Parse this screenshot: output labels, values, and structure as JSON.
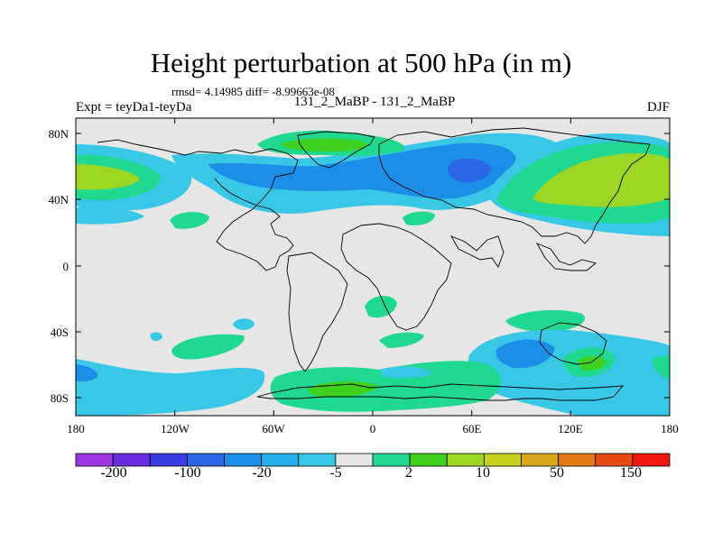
{
  "title": "Height perturbation at 500 hPa (in m)",
  "stats": "rmsd= 4.14985 diff= -8.99663e-08",
  "left_label": "Expt = teyDa1-teyDa",
  "center_label": "131_2_MaBP - 131_2_MaBP",
  "right_label": "DJF",
  "map": {
    "lon_range": [
      -180,
      180
    ],
    "lat_range": [
      -90,
      90
    ],
    "y_ticks": [
      "80N",
      "40N",
      "0",
      "40S",
      "80S"
    ],
    "x_ticks": [
      "180",
      "120W",
      "60W",
      "0",
      "60E",
      "120E",
      "180"
    ],
    "background_color": "#e6e6e6"
  },
  "colorbar": {
    "colors": [
      "#9b36e0",
      "#6a2ee0",
      "#3a3de2",
      "#2a66e6",
      "#1c8ee8",
      "#22aee8",
      "#38c8e6",
      "#e6e6e6",
      "#20d890",
      "#40d020",
      "#9ed626",
      "#c8d020",
      "#d8a81c",
      "#e07a16",
      "#e44a12",
      "#f01810"
    ],
    "labels": [
      "-200",
      "-100",
      "-20",
      "-5",
      "2",
      "10",
      "50",
      "150"
    ]
  }
}
